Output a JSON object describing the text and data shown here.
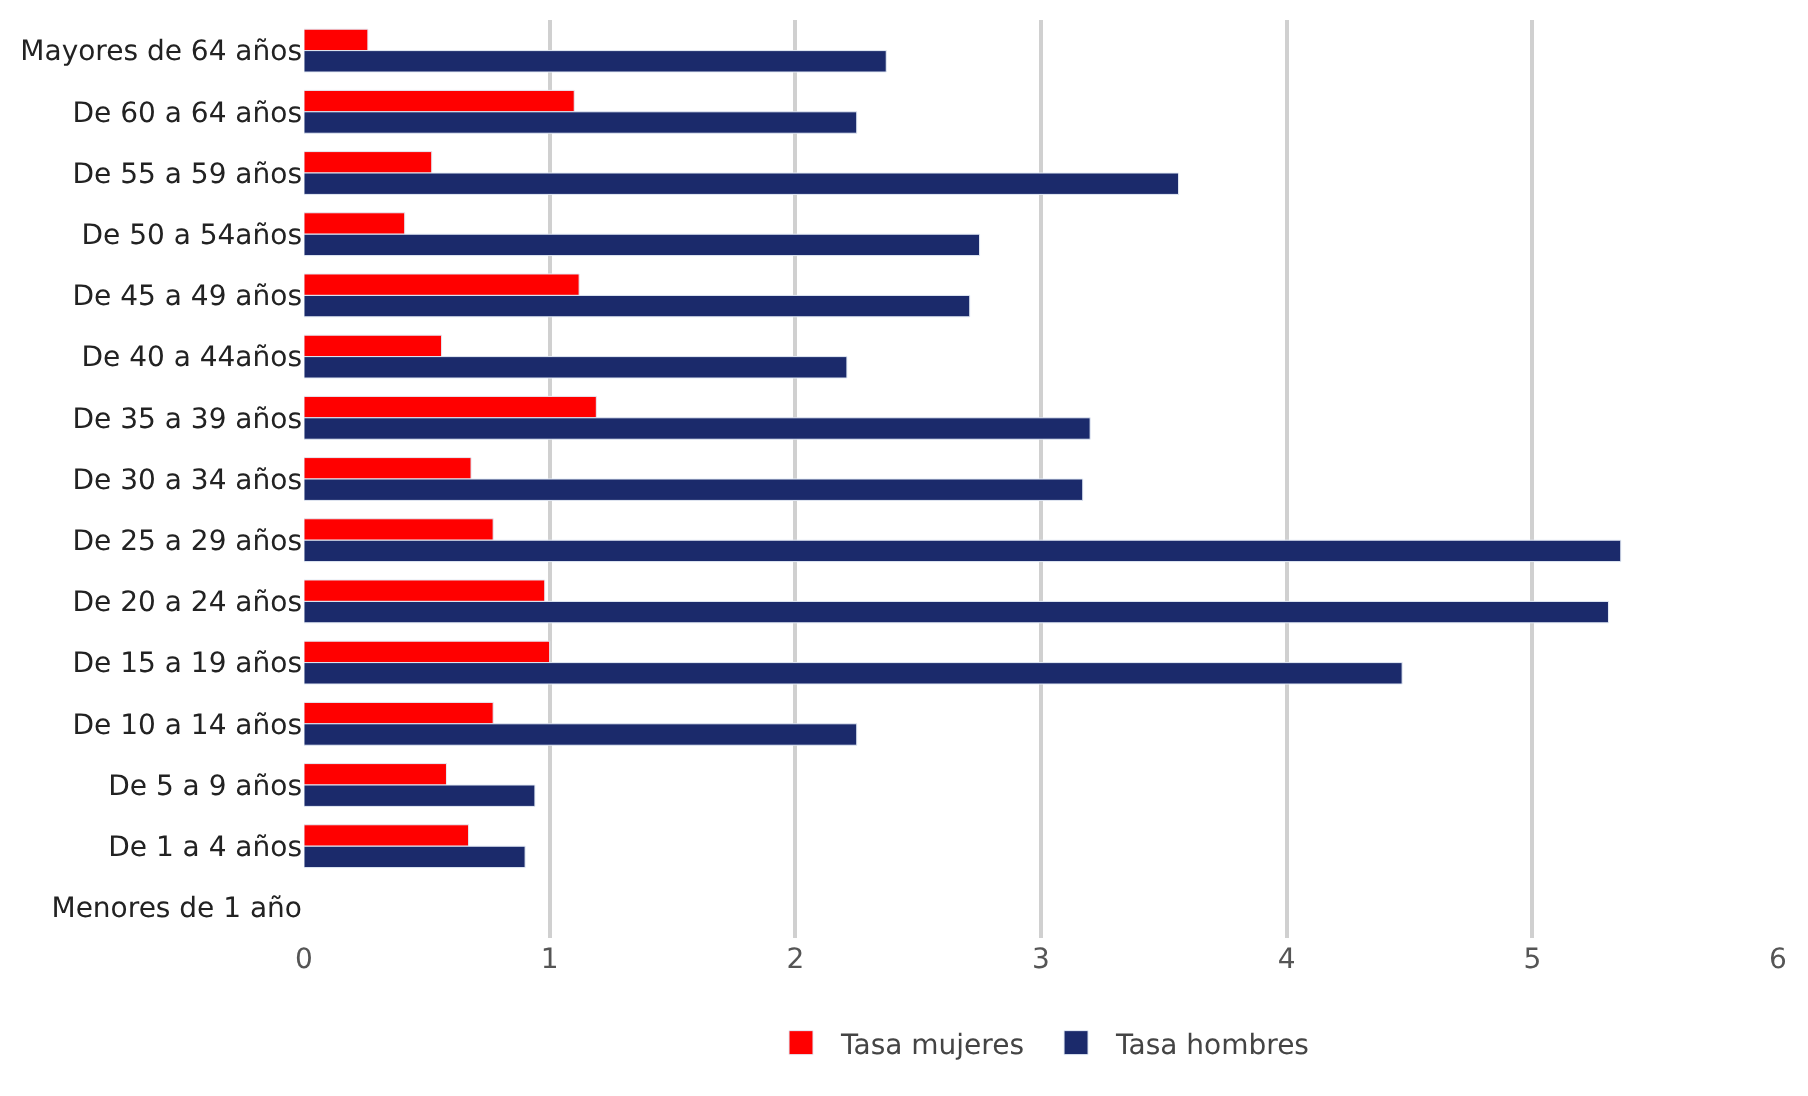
{
  "chart_data": {
    "type": "bar",
    "orientation": "horizontal",
    "categories": [
      "Mayores de 64 años",
      "De 60 a 64 años",
      "De 55 a 59 años",
      "De 50 a 54años",
      "De 45 a 49 años",
      "De 40 a 44años",
      "De 35 a 39 años",
      "De 30 a 34 años",
      "De 25 a 29 años",
      "De 20 a 24 años",
      "De 15 a 19 años",
      "De 10 a 14 años",
      "De 5 a 9 años",
      "De 1 a 4 años",
      "Menores de 1 año"
    ],
    "series": [
      {
        "name": "Tasa mujeres",
        "color": "#ff0000",
        "values": [
          0.26,
          1.1,
          0.52,
          0.41,
          1.12,
          0.56,
          1.19,
          0.68,
          0.77,
          0.98,
          1.0,
          0.77,
          0.58,
          0.67,
          null
        ]
      },
      {
        "name": "Tasa hombres",
        "color": "#1b2a6b",
        "values": [
          2.37,
          2.25,
          3.56,
          2.75,
          2.71,
          2.21,
          3.2,
          3.17,
          5.36,
          5.31,
          4.47,
          2.25,
          0.94,
          0.9,
          null
        ]
      }
    ],
    "xlim": [
      0,
      6
    ],
    "xticks": [
      0,
      1,
      2,
      3,
      4,
      5,
      6
    ],
    "grid": "x",
    "legend": "bottom"
  }
}
